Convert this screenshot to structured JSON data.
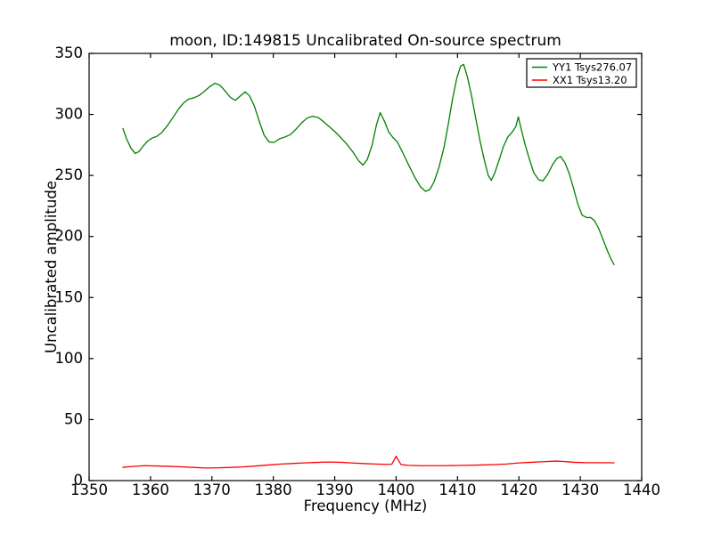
{
  "figure": {
    "background": "#ffffff",
    "axes_border_color": "#000000"
  },
  "chart_data": {
    "type": "line",
    "title": "moon, ID:149815 Uncalibrated On-source spectrum",
    "xlabel": "Frequency (MHz)",
    "ylabel": "Uncalibrated amplitude",
    "xlim": [
      1350,
      1440
    ],
    "ylim": [
      0,
      350
    ],
    "xticks": [
      1350,
      1360,
      1370,
      1380,
      1390,
      1400,
      1410,
      1420,
      1430,
      1440
    ],
    "yticks": [
      0,
      50,
      100,
      150,
      200,
      250,
      300,
      350
    ],
    "grid": false,
    "tick_direction": "in",
    "legend": {
      "position": "upper right"
    },
    "series": [
      {
        "name": "YY1 Tsys276.07",
        "color": "#008000",
        "x": [
          1355.5,
          1356.1,
          1356.8,
          1357.5,
          1358.1,
          1358.8,
          1359.5,
          1360.2,
          1361.0,
          1361.8,
          1362.7,
          1363.6,
          1364.5,
          1365.4,
          1366.2,
          1367.0,
          1367.9,
          1368.8,
          1369.7,
          1370.5,
          1371.3,
          1372.1,
          1373.0,
          1373.8,
          1374.6,
          1375.4,
          1376.1,
          1376.9,
          1377.7,
          1378.5,
          1379.3,
          1380.1,
          1381.0,
          1381.9,
          1382.8,
          1383.7,
          1384.6,
          1385.5,
          1386.4,
          1387.3,
          1388.2,
          1389.1,
          1390.0,
          1391.0,
          1392.0,
          1393.0,
          1393.9,
          1394.6,
          1395.3,
          1396.1,
          1396.8,
          1397.4,
          1398.1,
          1398.8,
          1399.5,
          1400.2,
          1401.1,
          1402.1,
          1403.1,
          1404.0,
          1404.8,
          1405.5,
          1406.2,
          1407.0,
          1407.8,
          1408.5,
          1409.2,
          1409.9,
          1410.5,
          1411.0,
          1411.6,
          1412.3,
          1413.0,
          1413.7,
          1414.4,
          1415.0,
          1415.5,
          1416.1,
          1416.8,
          1417.5,
          1418.2,
          1418.9,
          1419.5,
          1419.9,
          1420.4,
          1421.0,
          1421.7,
          1422.4,
          1423.2,
          1423.9,
          1424.7,
          1425.5,
          1426.2,
          1426.8,
          1427.5,
          1428.2,
          1428.9,
          1429.6,
          1430.3,
          1431.0,
          1431.7,
          1432.3,
          1433.0,
          1433.7,
          1434.4,
          1435.0,
          1435.5
        ],
        "y": [
          288.5,
          280,
          272.5,
          268,
          269.5,
          274,
          278,
          280.5,
          282,
          285,
          290.5,
          297,
          304,
          309.5,
          312.5,
          313.5,
          315.5,
          319,
          323,
          325.5,
          324,
          319.5,
          314,
          311.5,
          315,
          318.5,
          315.5,
          307,
          294.5,
          283,
          277.5,
          277,
          280,
          281.5,
          283.5,
          288,
          293,
          297,
          298.5,
          297.5,
          294,
          290,
          286,
          281,
          275.5,
          269,
          262,
          258.5,
          263,
          275,
          291.5,
          301.5,
          294.5,
          285.5,
          281,
          277.5,
          268.5,
          258,
          248,
          240.5,
          237,
          238.5,
          245,
          257,
          273,
          292,
          313,
          330,
          339.5,
          341,
          331,
          315,
          296,
          277.5,
          262,
          250,
          246,
          252.5,
          263,
          274,
          281.5,
          285.5,
          290,
          298,
          287.5,
          275.5,
          263.5,
          252.5,
          246.5,
          245.5,
          251,
          259,
          264,
          265.5,
          260.5,
          251.5,
          239.5,
          226.5,
          217.5,
          215.5,
          215.5,
          213,
          206.5,
          197.5,
          188.5,
          181.5,
          177
        ]
      },
      {
        "name": "XX1 Tsys13.20",
        "color": "#ff0000",
        "x": [
          1355.5,
          1357,
          1359,
          1361,
          1363,
          1365,
          1367,
          1369,
          1371,
          1373,
          1375,
          1377,
          1379,
          1381,
          1383,
          1385,
          1387,
          1389,
          1391,
          1393,
          1395,
          1397,
          1398.5,
          1399.3,
          1400.0,
          1400.8,
          1402,
          1404,
          1406,
          1408,
          1410,
          1412,
          1414,
          1416,
          1418,
          1420,
          1422,
          1424,
          1426,
          1427.5,
          1429,
          1431,
          1433,
          1435.5
        ],
        "y": [
          10.9,
          11.6,
          12.2,
          12.0,
          11.7,
          11.3,
          10.8,
          10.3,
          10.5,
          10.8,
          11.2,
          11.9,
          12.7,
          13.5,
          14.0,
          14.5,
          14.9,
          15.2,
          15.0,
          14.4,
          13.9,
          13.5,
          13.3,
          13.4,
          19.9,
          13.1,
          12.5,
          12.2,
          12.2,
          12.2,
          12.4,
          12.6,
          12.8,
          13.1,
          13.6,
          14.5,
          15.0,
          15.5,
          16.0,
          15.6,
          15.0,
          14.7,
          14.7,
          14.6
        ]
      }
    ]
  }
}
